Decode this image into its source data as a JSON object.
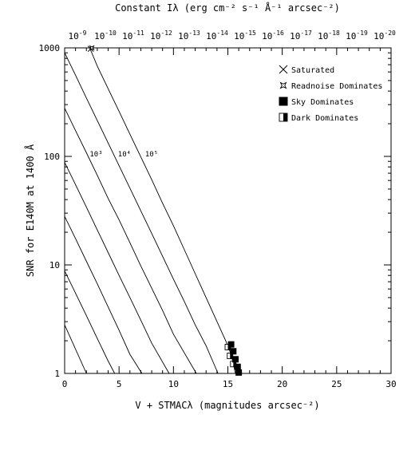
{
  "chart_data": {
    "type": "line",
    "title": "Constant Iλ (erg cm⁻² s⁻¹ Å⁻¹ arcsec⁻²)",
    "xlabel": "V + STMACλ (magnitudes arcsec⁻²)",
    "ylabel": "SNR for E140M at 1400 Å",
    "xlim": [
      0,
      30
    ],
    "ylim": [
      1,
      1000
    ],
    "yscale": "log",
    "x_ticks": [
      "0",
      "5",
      "10",
      "15",
      "20",
      "25",
      "30"
    ],
    "y_ticks": [
      "1",
      "10",
      "100",
      "1000"
    ],
    "top_axis_exponents": [
      "-9",
      "-10",
      "-11",
      "-12",
      "-13",
      "-14",
      "-15",
      "-16",
      "-17",
      "-18",
      "-19",
      "-20"
    ],
    "top_axis_base": "10",
    "legend": {
      "position": "top-right",
      "entries": [
        {
          "label": "Saturated",
          "marker": "x-cross"
        },
        {
          "label": "Readnoise Dominates",
          "marker": "star-outline"
        },
        {
          "label": "Sky Dominates",
          "marker": "filled-square"
        },
        {
          "label": "Dark Dominates",
          "marker": "half-filled-square"
        }
      ]
    },
    "curve_labels": [
      {
        "text": "10³",
        "x": 2.3,
        "y": 100
      },
      {
        "text": "10⁴",
        "x": 4.9,
        "y": 100
      },
      {
        "text": "10⁵",
        "x": 7.4,
        "y": 100
      }
    ],
    "series": [
      {
        "values": [
          [
            0.0,
            2.8
          ],
          [
            2.0,
            1.0
          ]
        ]
      },
      {
        "values": [
          [
            0.0,
            8.8
          ],
          [
            1.0,
            5.5
          ],
          [
            2.0,
            3.4
          ],
          [
            3.0,
            2.1
          ],
          [
            4.0,
            1.3
          ],
          [
            4.6,
            1.0
          ]
        ]
      },
      {
        "values": [
          [
            0.0,
            28
          ],
          [
            1.0,
            17.5
          ],
          [
            2.0,
            10.8
          ],
          [
            3.0,
            6.7
          ],
          [
            4.0,
            4.1
          ],
          [
            5.0,
            2.5
          ],
          [
            6.0,
            1.5
          ],
          [
            7.1,
            1.0
          ]
        ]
      },
      {
        "values": [
          [
            0.0,
            88
          ],
          [
            1.0,
            55
          ],
          [
            2.0,
            34
          ],
          [
            3.0,
            21
          ],
          [
            4.0,
            13
          ],
          [
            5.0,
            8
          ],
          [
            6.0,
            5
          ],
          [
            7.0,
            3.1
          ],
          [
            8.0,
            1.9
          ],
          [
            9.6,
            1.0
          ]
        ]
      },
      {
        "values": [
          [
            0.0,
            278
          ],
          [
            1.0,
            173
          ],
          [
            2.0,
            108
          ],
          [
            3.0,
            67
          ],
          [
            4.0,
            41
          ],
          [
            5.0,
            26
          ],
          [
            6.0,
            16
          ],
          [
            7.0,
            9.8
          ],
          [
            8.0,
            6.1
          ],
          [
            9.0,
            3.8
          ],
          [
            10.0,
            2.3
          ],
          [
            12.1,
            1.0
          ]
        ]
      },
      {
        "values": [
          [
            0.0,
            900
          ],
          [
            1.0,
            560
          ],
          [
            2.0,
            345
          ],
          [
            3.0,
            214
          ],
          [
            4.0,
            133
          ],
          [
            5.0,
            82
          ],
          [
            6.0,
            51
          ],
          [
            7.0,
            31.5
          ],
          [
            8.0,
            19.5
          ],
          [
            9.0,
            12
          ],
          [
            10.0,
            7.4
          ],
          [
            11.0,
            4.6
          ],
          [
            12.0,
            2.8
          ],
          [
            13.0,
            1.8
          ],
          [
            14.1,
            1.0
          ]
        ]
      },
      {
        "values": [
          [
            2.3,
            1000
          ],
          [
            3.0,
            680
          ],
          [
            4.0,
            420
          ],
          [
            5.0,
            260
          ],
          [
            6.0,
            160
          ],
          [
            7.0,
            99
          ],
          [
            8.0,
            61
          ],
          [
            9.0,
            37
          ],
          [
            10.0,
            23
          ],
          [
            11.0,
            13.8
          ],
          [
            12.0,
            8.3
          ],
          [
            13.0,
            5.0
          ],
          [
            14.0,
            3.0
          ],
          [
            14.8,
            2.0
          ],
          [
            15.3,
            1.5
          ],
          [
            15.7,
            1.0
          ]
        ]
      }
    ],
    "markers": [
      {
        "type": "saturated",
        "x": 2.4,
        "y": 980
      },
      {
        "type": "readnoise",
        "x": 2.5,
        "y": 1000
      },
      {
        "type": "dark",
        "x": 15.0,
        "y": 1.75
      },
      {
        "type": "dark",
        "x": 15.2,
        "y": 1.45
      },
      {
        "type": "dark",
        "x": 15.5,
        "y": 1.22
      },
      {
        "type": "sky",
        "x": 15.3,
        "y": 1.85
      },
      {
        "type": "sky",
        "x": 15.5,
        "y": 1.6
      },
      {
        "type": "sky",
        "x": 15.7,
        "y": 1.35
      },
      {
        "type": "sky",
        "x": 15.9,
        "y": 1.15
      },
      {
        "type": "sky",
        "x": 16.0,
        "y": 1.02
      }
    ]
  }
}
